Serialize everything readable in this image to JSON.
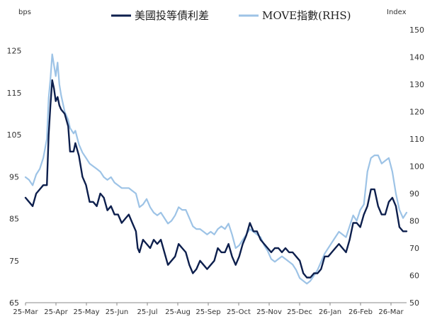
{
  "chart_data": {
    "type": "line",
    "title": "",
    "legend_position": "top-center",
    "left_axis": {
      "unit": "bps",
      "ylim": [
        65,
        130
      ],
      "ticks": [
        65,
        75,
        85,
        95,
        105,
        115,
        125
      ]
    },
    "right_axis": {
      "unit": "Index",
      "ylim": [
        50,
        150
      ],
      "ticks": [
        50,
        60,
        70,
        80,
        90,
        100,
        110,
        120,
        130,
        140,
        150
      ]
    },
    "x_tick_labels": [
      "25-Mar",
      "25-Apr",
      "25-May",
      "25-Jun",
      "25-Jul",
      "25-Aug",
      "25-Sep",
      "25-Oct",
      "25-Nov",
      "25-Dec",
      "26-Jan",
      "26-Feb",
      "26-Mar"
    ],
    "x_count": 125,
    "series": [
      {
        "name": "美國投等債利差",
        "axis": "left",
        "color": "#0d1f4d",
        "points": [
          [
            0,
            90
          ],
          [
            2,
            89
          ],
          [
            4,
            88
          ],
          [
            6,
            91
          ],
          [
            8,
            92
          ],
          [
            10,
            93
          ],
          [
            12,
            93
          ],
          [
            13,
            105
          ],
          [
            14,
            112
          ],
          [
            15,
            118
          ],
          [
            16,
            116
          ],
          [
            17,
            113
          ],
          [
            18,
            114
          ],
          [
            19,
            112
          ],
          [
            20,
            111
          ],
          [
            22,
            110
          ],
          [
            24,
            107
          ],
          [
            25,
            101
          ],
          [
            27,
            101
          ],
          [
            28,
            103
          ],
          [
            30,
            100
          ],
          [
            32,
            95
          ],
          [
            34,
            93
          ],
          [
            36,
            89
          ],
          [
            38,
            89
          ],
          [
            40,
            88
          ],
          [
            42,
            91
          ],
          [
            44,
            90
          ],
          [
            46,
            87
          ],
          [
            48,
            88
          ],
          [
            50,
            86
          ],
          [
            52,
            86
          ],
          [
            54,
            84
          ],
          [
            56,
            85
          ],
          [
            58,
            86
          ],
          [
            60,
            84
          ],
          [
            62,
            82
          ],
          [
            63,
            78
          ],
          [
            64,
            77
          ],
          [
            66,
            80
          ],
          [
            68,
            79
          ],
          [
            70,
            78
          ],
          [
            72,
            80
          ],
          [
            74,
            79
          ],
          [
            76,
            80
          ],
          [
            78,
            77
          ],
          [
            80,
            74
          ],
          [
            82,
            75
          ],
          [
            84,
            76
          ],
          [
            86,
            79
          ],
          [
            88,
            78
          ],
          [
            90,
            77
          ],
          [
            92,
            74
          ],
          [
            94,
            72
          ],
          [
            96,
            73
          ],
          [
            98,
            75
          ],
          [
            100,
            74
          ],
          [
            102,
            73
          ],
          [
            104,
            74
          ],
          [
            106,
            75
          ],
          [
            108,
            78
          ],
          [
            110,
            77
          ],
          [
            112,
            77
          ],
          [
            114,
            79
          ],
          [
            116,
            76
          ],
          [
            118,
            74
          ],
          [
            120,
            76
          ],
          [
            122,
            79
          ],
          [
            124,
            81
          ],
          [
            126,
            84
          ],
          [
            128,
            82
          ],
          [
            130,
            82
          ],
          [
            132,
            80
          ],
          [
            134,
            79
          ],
          [
            136,
            78
          ],
          [
            138,
            77
          ],
          [
            140,
            78
          ],
          [
            142,
            78
          ],
          [
            144,
            77
          ],
          [
            146,
            78
          ],
          [
            148,
            77
          ],
          [
            150,
            77
          ],
          [
            152,
            76
          ],
          [
            154,
            75
          ],
          [
            156,
            72
          ],
          [
            158,
            71
          ],
          [
            160,
            71
          ],
          [
            162,
            72
          ],
          [
            164,
            72
          ],
          [
            166,
            73
          ],
          [
            168,
            76
          ],
          [
            170,
            76
          ],
          [
            172,
            77
          ],
          [
            174,
            78
          ],
          [
            176,
            79
          ],
          [
            178,
            78
          ],
          [
            180,
            77
          ],
          [
            182,
            80
          ],
          [
            184,
            84
          ],
          [
            186,
            84
          ],
          [
            188,
            83
          ],
          [
            190,
            86
          ],
          [
            192,
            88
          ],
          [
            194,
            92
          ],
          [
            196,
            92
          ],
          [
            198,
            88
          ],
          [
            200,
            86
          ],
          [
            202,
            86
          ],
          [
            204,
            89
          ],
          [
            206,
            90
          ],
          [
            208,
            88
          ],
          [
            210,
            83
          ],
          [
            212,
            82
          ],
          [
            214,
            82
          ]
        ]
      },
      {
        "name": "MOVE指數(RHS)",
        "axis": "right",
        "color": "#9dc3e6",
        "points": [
          [
            0,
            96
          ],
          [
            2,
            95
          ],
          [
            4,
            93
          ],
          [
            6,
            97
          ],
          [
            8,
            99
          ],
          [
            10,
            103
          ],
          [
            12,
            110
          ],
          [
            13,
            125
          ],
          [
            14,
            132
          ],
          [
            15,
            141
          ],
          [
            16,
            137
          ],
          [
            17,
            133
          ],
          [
            18,
            138
          ],
          [
            19,
            130
          ],
          [
            20,
            126
          ],
          [
            22,
            120
          ],
          [
            24,
            117
          ],
          [
            25,
            114
          ],
          [
            27,
            112
          ],
          [
            28,
            113
          ],
          [
            30,
            108
          ],
          [
            32,
            105
          ],
          [
            34,
            103
          ],
          [
            36,
            101
          ],
          [
            38,
            100
          ],
          [
            40,
            99
          ],
          [
            42,
            98
          ],
          [
            44,
            96
          ],
          [
            46,
            95
          ],
          [
            48,
            96
          ],
          [
            50,
            94
          ],
          [
            52,
            93
          ],
          [
            54,
            92
          ],
          [
            56,
            92
          ],
          [
            58,
            92
          ],
          [
            60,
            91
          ],
          [
            62,
            90
          ],
          [
            64,
            85
          ],
          [
            66,
            86
          ],
          [
            68,
            88
          ],
          [
            70,
            85
          ],
          [
            72,
            83
          ],
          [
            74,
            82
          ],
          [
            76,
            83
          ],
          [
            78,
            81
          ],
          [
            80,
            79
          ],
          [
            82,
            80
          ],
          [
            84,
            82
          ],
          [
            86,
            85
          ],
          [
            88,
            84
          ],
          [
            90,
            84
          ],
          [
            92,
            81
          ],
          [
            94,
            78
          ],
          [
            96,
            77
          ],
          [
            98,
            77
          ],
          [
            100,
            76
          ],
          [
            102,
            75
          ],
          [
            104,
            76
          ],
          [
            106,
            75
          ],
          [
            108,
            77
          ],
          [
            110,
            78
          ],
          [
            112,
            77
          ],
          [
            114,
            79
          ],
          [
            116,
            75
          ],
          [
            118,
            70
          ],
          [
            120,
            71
          ],
          [
            122,
            73
          ],
          [
            124,
            75
          ],
          [
            126,
            77
          ],
          [
            128,
            76
          ],
          [
            130,
            75
          ],
          [
            132,
            74
          ],
          [
            134,
            71
          ],
          [
            136,
            69
          ],
          [
            138,
            66
          ],
          [
            140,
            65
          ],
          [
            142,
            66
          ],
          [
            144,
            67
          ],
          [
            146,
            66
          ],
          [
            148,
            65
          ],
          [
            150,
            64
          ],
          [
            152,
            62
          ],
          [
            154,
            59
          ],
          [
            156,
            58
          ],
          [
            158,
            57
          ],
          [
            160,
            58
          ],
          [
            162,
            60
          ],
          [
            164,
            62
          ],
          [
            166,
            65
          ],
          [
            168,
            68
          ],
          [
            170,
            70
          ],
          [
            172,
            72
          ],
          [
            174,
            74
          ],
          [
            176,
            76
          ],
          [
            178,
            75
          ],
          [
            180,
            74
          ],
          [
            182,
            78
          ],
          [
            184,
            82
          ],
          [
            186,
            80
          ],
          [
            188,
            84
          ],
          [
            190,
            86
          ],
          [
            192,
            98
          ],
          [
            194,
            103
          ],
          [
            196,
            104
          ],
          [
            198,
            104
          ],
          [
            200,
            101
          ],
          [
            202,
            102
          ],
          [
            204,
            103
          ],
          [
            206,
            98
          ],
          [
            208,
            90
          ],
          [
            210,
            84
          ],
          [
            212,
            81
          ],
          [
            214,
            83
          ]
        ]
      }
    ]
  }
}
